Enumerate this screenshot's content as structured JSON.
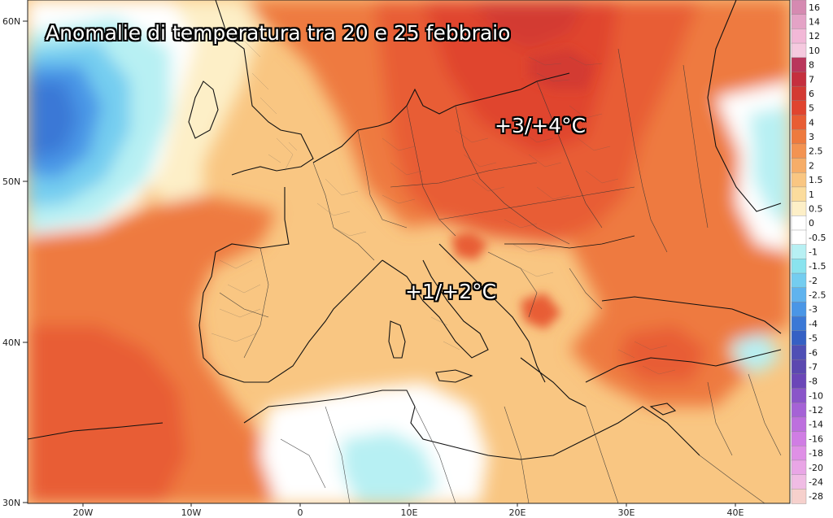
{
  "title": "Anomalie di temperatura tra 20 e 25 febbraio",
  "annotations": [
    {
      "text": "+3/+4°C"
    },
    {
      "text": "+1/+2°C"
    }
  ],
  "lat_labels": [
    "60N",
    "50N",
    "40N",
    "30N"
  ],
  "lon_labels": [
    "20W",
    "10W",
    "0",
    "10E",
    "20E",
    "30E",
    "40E"
  ],
  "legend": [
    {
      "label": "16",
      "color": "#d58ab1"
    },
    {
      "label": "14",
      "color": "#e4a3c6"
    },
    {
      "label": "12",
      "color": "#f2b8d7"
    },
    {
      "label": "10",
      "color": "#f5c9df"
    },
    {
      "label": "8",
      "color": "#b9365c"
    },
    {
      "label": "7",
      "color": "#c52f3e"
    },
    {
      "label": "6",
      "color": "#d33a33"
    },
    {
      "label": "5",
      "color": "#e0442f"
    },
    {
      "label": "4",
      "color": "#e85d34"
    },
    {
      "label": "3",
      "color": "#ee7a3f"
    },
    {
      "label": "2.5",
      "color": "#f39352"
    },
    {
      "label": "2",
      "color": "#f6ad68"
    },
    {
      "label": "1.5",
      "color": "#f9c682"
    },
    {
      "label": "1",
      "color": "#fbdc9d"
    },
    {
      "label": "0.5",
      "color": "#fdefc7"
    },
    {
      "label": "0",
      "color": "#ffffff"
    },
    {
      "label": "-0.5",
      "color": "#ffffff"
    },
    {
      "label": "-1",
      "color": "#b7f0f3"
    },
    {
      "label": "-1.5",
      "color": "#8ae3ee"
    },
    {
      "label": "-2",
      "color": "#74cdf0"
    },
    {
      "label": "-2.5",
      "color": "#5fb3ee"
    },
    {
      "label": "-3",
      "color": "#4a96e6"
    },
    {
      "label": "-4",
      "color": "#3b78d6"
    },
    {
      "label": "-5",
      "color": "#3560c4"
    },
    {
      "label": "-6",
      "color": "#4f4fb5"
    },
    {
      "label": "-7",
      "color": "#5b48b0"
    },
    {
      "label": "-8",
      "color": "#6b46b8"
    },
    {
      "label": "-10",
      "color": "#8a55c9"
    },
    {
      "label": "-12",
      "color": "#a562d6"
    },
    {
      "label": "-14",
      "color": "#bd6fde"
    },
    {
      "label": "-16",
      "color": "#d07de4"
    },
    {
      "label": "-18",
      "color": "#df90e6"
    },
    {
      "label": "-20",
      "color": "#e9a6e6"
    },
    {
      "label": "-24",
      "color": "#f0bce4"
    },
    {
      "label": "-28",
      "color": "#f6d0cc"
    }
  ]
}
